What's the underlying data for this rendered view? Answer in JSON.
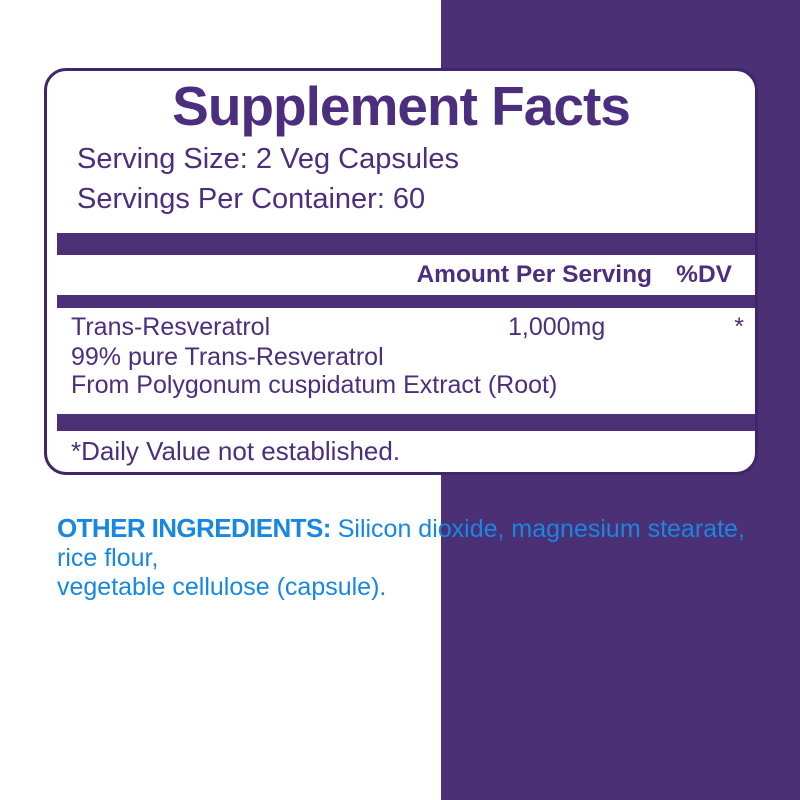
{
  "colors": {
    "background-purple": "#4B3076",
    "panel-border": "#3F2569",
    "heading-purple": "#4C2E7E",
    "bar-purple": "#4C3179",
    "ingredients-blue": "#1787E2"
  },
  "panel": {
    "title": "Supplement Facts",
    "serving_size": "Serving Size: 2 Veg Capsules",
    "servings_per_container": "Servings Per Container: 60",
    "columns": {
      "amount": "Amount Per Serving",
      "dv": "%DV"
    },
    "rows": [
      {
        "name": "Trans-Resveratrol",
        "amount": "1,000mg",
        "dv": "*",
        "details": [
          "99% pure Trans-Resveratrol",
          "From Polygonum cuspidatum Extract (Root)"
        ]
      }
    ],
    "footnote": "*Daily Value not established."
  },
  "other_ingredients": {
    "label": "OTHER INGREDIENTS:",
    "line1_rest": " Silicon dioxide, magnesium stearate, rice flour,",
    "line2": "vegetable cellulose (capsule)."
  }
}
